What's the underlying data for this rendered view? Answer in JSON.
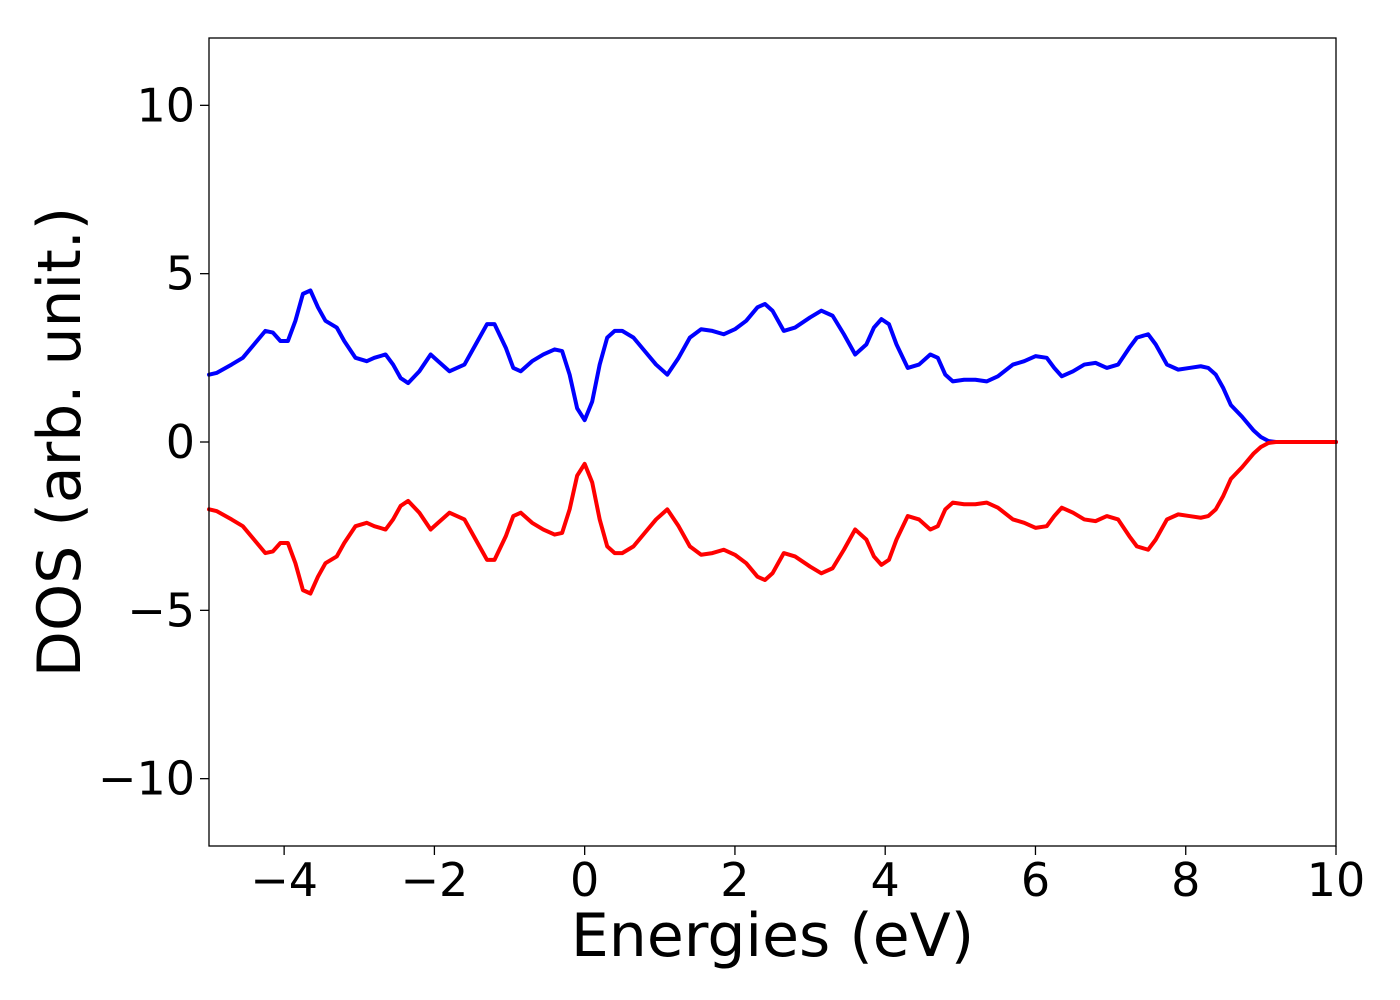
{
  "chart_data": {
    "type": "line",
    "title": "",
    "xlabel": "Energies (eV)",
    "ylabel": "DOS (arb. unit.)",
    "xlim": [
      -5,
      10
    ],
    "ylim": [
      -12,
      12
    ],
    "xticks": [
      -4,
      -2,
      0,
      2,
      4,
      6,
      8,
      10
    ],
    "xtick_labels": [
      "−4",
      "−2",
      "0",
      "2",
      "4",
      "6",
      "8",
      "10"
    ],
    "yticks": [
      -10,
      -5,
      0,
      5,
      10
    ],
    "ytick_labels": [
      "−10",
      "−5",
      "0",
      "5",
      "10"
    ],
    "grid": false,
    "legend": "none",
    "series": [
      {
        "color": "#0000ff",
        "x": [
          -5,
          -4.9,
          -4.7,
          -4.55,
          -4.4,
          -4.25,
          -4.15,
          -4.05,
          -3.95,
          -3.85,
          -3.75,
          -3.65,
          -3.55,
          -3.45,
          -3.3,
          -3.2,
          -3.05,
          -2.9,
          -2.8,
          -2.65,
          -2.55,
          -2.45,
          -2.35,
          -2.2,
          -2.05,
          -1.95,
          -1.8,
          -1.6,
          -1.45,
          -1.3,
          -1.2,
          -1.05,
          -0.95,
          -0.85,
          -0.7,
          -0.55,
          -0.4,
          -0.3,
          -0.2,
          -0.1,
          0,
          0.1,
          0.2,
          0.3,
          0.4,
          0.5,
          0.65,
          0.8,
          0.95,
          1.1,
          1.25,
          1.4,
          1.55,
          1.7,
          1.85,
          2.0,
          2.15,
          2.3,
          2.4,
          2.5,
          2.65,
          2.8,
          3.0,
          3.15,
          3.3,
          3.45,
          3.6,
          3.75,
          3.85,
          3.95,
          4.05,
          4.15,
          4.3,
          4.45,
          4.6,
          4.7,
          4.8,
          4.9,
          5.05,
          5.2,
          5.35,
          5.5,
          5.7,
          5.85,
          6.0,
          6.15,
          6.25,
          6.35,
          6.5,
          6.65,
          6.8,
          6.95,
          7.1,
          7.25,
          7.35,
          7.5,
          7.6,
          7.75,
          7.9,
          8.05,
          8.2,
          8.3,
          8.4,
          8.5,
          8.6,
          8.75,
          8.9,
          9.0,
          9.1,
          9.2,
          9.3,
          9.5,
          10
        ],
        "y": [
          2.0,
          2.05,
          2.3,
          2.5,
          2.9,
          3.3,
          3.25,
          3.0,
          3.0,
          3.6,
          4.4,
          4.5,
          4.0,
          3.6,
          3.4,
          3.0,
          2.5,
          2.4,
          2.5,
          2.6,
          2.3,
          1.9,
          1.75,
          2.1,
          2.6,
          2.4,
          2.1,
          2.3,
          2.9,
          3.5,
          3.5,
          2.8,
          2.2,
          2.1,
          2.4,
          2.6,
          2.75,
          2.7,
          2.0,
          1.0,
          0.65,
          1.2,
          2.3,
          3.1,
          3.3,
          3.3,
          3.1,
          2.7,
          2.3,
          2.0,
          2.5,
          3.1,
          3.35,
          3.3,
          3.2,
          3.35,
          3.6,
          4.0,
          4.1,
          3.9,
          3.3,
          3.4,
          3.7,
          3.9,
          3.75,
          3.2,
          2.6,
          2.9,
          3.4,
          3.65,
          3.5,
          2.9,
          2.2,
          2.3,
          2.6,
          2.5,
          2.0,
          1.8,
          1.85,
          1.85,
          1.8,
          1.95,
          2.3,
          2.4,
          2.55,
          2.5,
          2.2,
          1.95,
          2.1,
          2.3,
          2.35,
          2.2,
          2.3,
          2.8,
          3.1,
          3.2,
          2.9,
          2.3,
          2.15,
          2.2,
          2.25,
          2.2,
          2.0,
          1.6,
          1.1,
          0.75,
          0.35,
          0.15,
          0.03,
          0.0,
          0.0,
          0.0,
          0.0
        ]
      },
      {
        "color": "#ff0000",
        "x": [
          -5,
          -4.9,
          -4.7,
          -4.55,
          -4.4,
          -4.25,
          -4.15,
          -4.05,
          -3.95,
          -3.85,
          -3.75,
          -3.65,
          -3.55,
          -3.45,
          -3.3,
          -3.2,
          -3.05,
          -2.9,
          -2.8,
          -2.65,
          -2.55,
          -2.45,
          -2.35,
          -2.2,
          -2.05,
          -1.95,
          -1.8,
          -1.6,
          -1.45,
          -1.3,
          -1.2,
          -1.05,
          -0.95,
          -0.85,
          -0.7,
          -0.55,
          -0.4,
          -0.3,
          -0.2,
          -0.1,
          0,
          0.1,
          0.2,
          0.3,
          0.4,
          0.5,
          0.65,
          0.8,
          0.95,
          1.1,
          1.25,
          1.4,
          1.55,
          1.7,
          1.85,
          2.0,
          2.15,
          2.3,
          2.4,
          2.5,
          2.65,
          2.8,
          3.0,
          3.15,
          3.3,
          3.45,
          3.6,
          3.75,
          3.85,
          3.95,
          4.05,
          4.15,
          4.3,
          4.45,
          4.6,
          4.7,
          4.8,
          4.9,
          5.05,
          5.2,
          5.35,
          5.5,
          5.7,
          5.85,
          6.0,
          6.15,
          6.25,
          6.35,
          6.5,
          6.65,
          6.8,
          6.95,
          7.1,
          7.25,
          7.35,
          7.5,
          7.6,
          7.75,
          7.9,
          8.05,
          8.2,
          8.3,
          8.4,
          8.5,
          8.6,
          8.75,
          8.9,
          9.0,
          9.1,
          9.2,
          9.3,
          9.5,
          10
        ],
        "y": [
          -2.0,
          -2.05,
          -2.3,
          -2.5,
          -2.9,
          -3.3,
          -3.25,
          -3.0,
          -3.0,
          -3.6,
          -4.4,
          -4.5,
          -4.0,
          -3.6,
          -3.4,
          -3.0,
          -2.5,
          -2.4,
          -2.5,
          -2.6,
          -2.3,
          -1.9,
          -1.75,
          -2.1,
          -2.6,
          -2.4,
          -2.1,
          -2.3,
          -2.9,
          -3.5,
          -3.5,
          -2.8,
          -2.2,
          -2.1,
          -2.4,
          -2.6,
          -2.75,
          -2.7,
          -2.0,
          -1.0,
          -0.65,
          -1.2,
          -2.3,
          -3.1,
          -3.3,
          -3.3,
          -3.1,
          -2.7,
          -2.3,
          -2.0,
          -2.5,
          -3.1,
          -3.35,
          -3.3,
          -3.2,
          -3.35,
          -3.6,
          -4.0,
          -4.1,
          -3.9,
          -3.3,
          -3.4,
          -3.7,
          -3.9,
          -3.75,
          -3.2,
          -2.6,
          -2.9,
          -3.4,
          -3.65,
          -3.5,
          -2.9,
          -2.2,
          -2.3,
          -2.6,
          -2.5,
          -2.0,
          -1.8,
          -1.85,
          -1.85,
          -1.8,
          -1.95,
          -2.3,
          -2.4,
          -2.55,
          -2.5,
          -2.2,
          -1.95,
          -2.1,
          -2.3,
          -2.35,
          -2.2,
          -2.3,
          -2.8,
          -3.1,
          -3.2,
          -2.9,
          -2.3,
          -2.15,
          -2.2,
          -2.25,
          -2.2,
          -2.0,
          -1.6,
          -1.1,
          -0.75,
          -0.35,
          -0.15,
          -0.03,
          0.0,
          0.0,
          0.0,
          0.0
        ]
      }
    ]
  }
}
